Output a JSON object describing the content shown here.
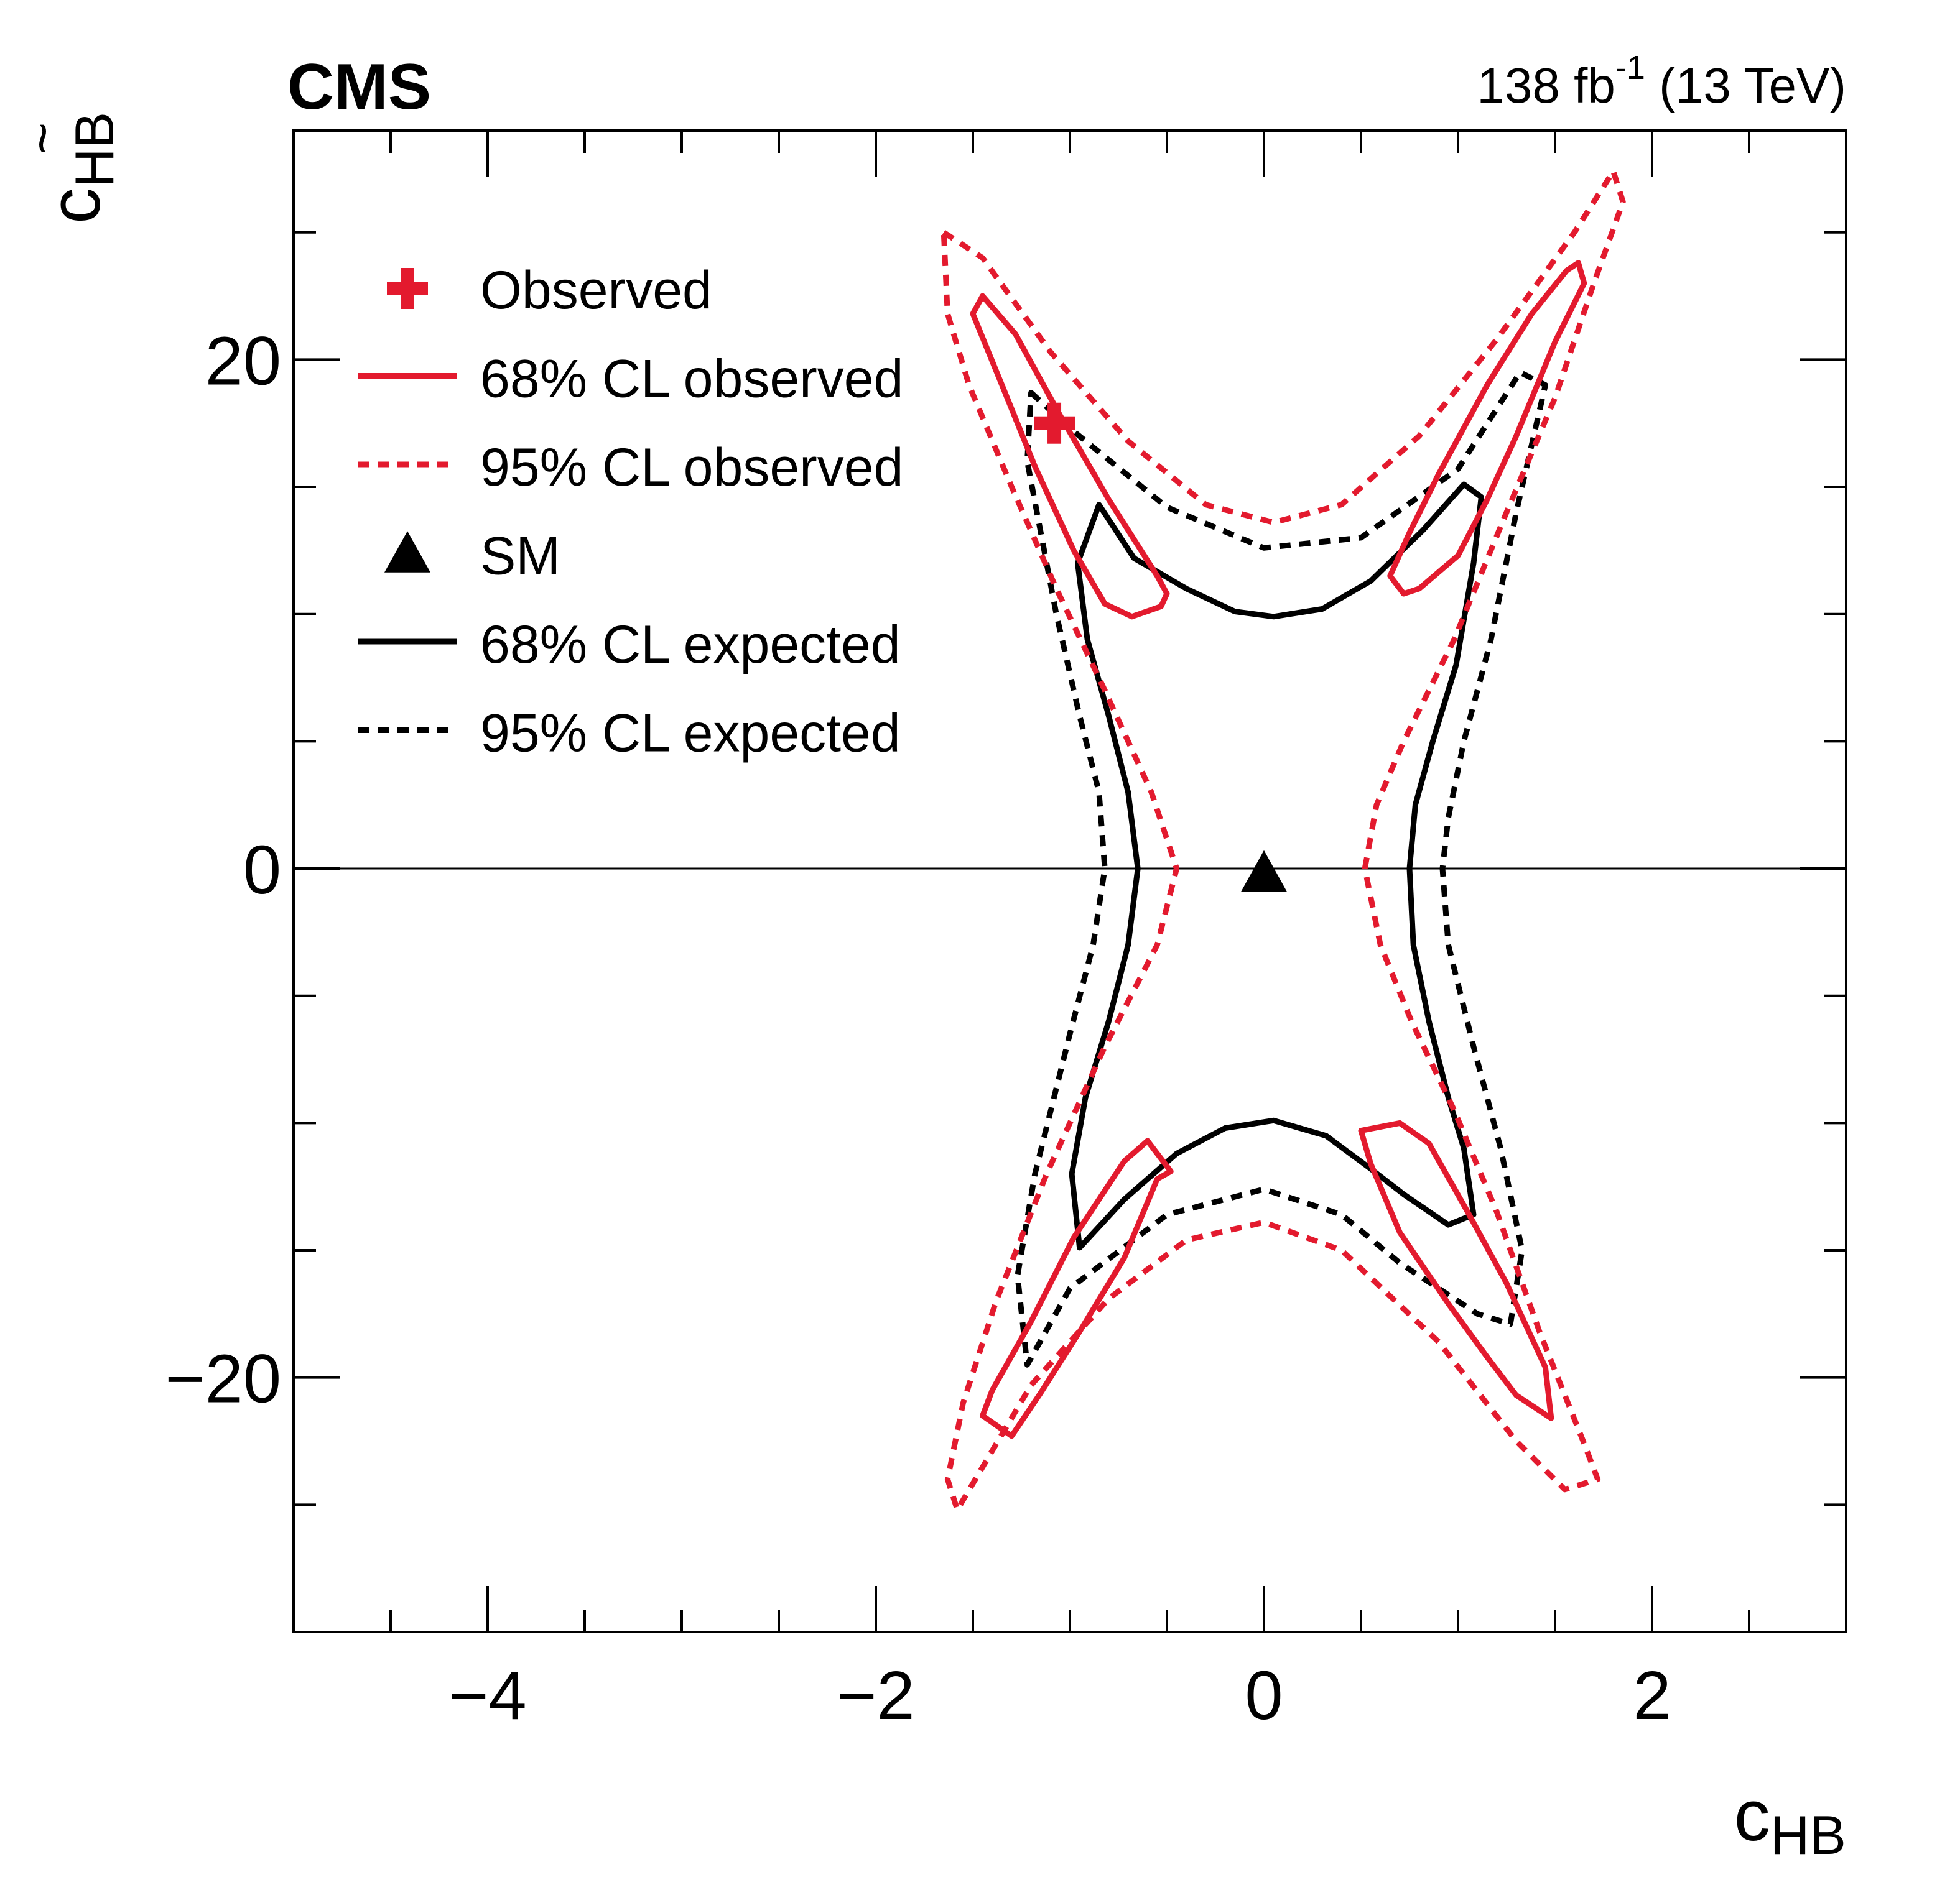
{
  "header": {
    "experiment": "CMS",
    "lumi_value": "138 fb",
    "lumi_exponent": "-1",
    "energy": "(13 TeV)"
  },
  "colors": {
    "observed": "#e31a2e",
    "expected": "#000000"
  },
  "chart_data": {
    "type": "line",
    "title": "",
    "xlabel": {
      "main": "c",
      "sub": "HB"
    },
    "ylabel": {
      "main": "c",
      "sub": "HB",
      "accent": "~"
    },
    "xlim": [
      -5,
      3
    ],
    "ylim": [
      -30,
      29
    ],
    "xticks": [
      -4,
      -2,
      0,
      2
    ],
    "xtick_labels": [
      "−4",
      "−2",
      "0",
      "2"
    ],
    "yticks": [
      -20,
      0,
      20
    ],
    "ytick_labels": [
      "−20",
      "0",
      "20"
    ],
    "reference_line": {
      "y": 0
    },
    "legend_position": "top-left",
    "legend": [
      {
        "key": "observed",
        "label": "Observed",
        "symbol": "cross",
        "color": "#e31a2e"
      },
      {
        "key": "obs68",
        "label": "68% CL observed",
        "symbol": "solid",
        "color": "#e31a2e"
      },
      {
        "key": "obs95",
        "label": "95% CL observed",
        "symbol": "dashed",
        "color": "#e31a2e"
      },
      {
        "key": "sm",
        "label": "SM",
        "symbol": "triangle",
        "color": "#000000"
      },
      {
        "key": "exp68",
        "label": "68% CL expected",
        "symbol": "solid",
        "color": "#000000"
      },
      {
        "key": "exp95",
        "label": "95% CL expected",
        "symbol": "dashed",
        "color": "#000000"
      }
    ],
    "points": {
      "observed_best_fit": {
        "x": -1.08,
        "y": 17.5
      },
      "sm": {
        "x": 0.0,
        "y": 0.0
      }
    },
    "series": [
      {
        "name": "68% CL expected",
        "color": "#000000",
        "style": "solid",
        "closed": true,
        "points": [
          [
            -0.85,
            14.3
          ],
          [
            -0.67,
            12.2
          ],
          [
            -0.4,
            11.0
          ],
          [
            -0.15,
            10.1
          ],
          [
            0.05,
            9.9
          ],
          [
            0.3,
            10.2
          ],
          [
            0.55,
            11.3
          ],
          [
            0.82,
            13.3
          ],
          [
            1.03,
            15.1
          ],
          [
            1.12,
            14.6
          ],
          [
            1.08,
            12.0
          ],
          [
            0.99,
            8.0
          ],
          [
            0.87,
            5.0
          ],
          [
            0.78,
            2.5
          ],
          [
            0.75,
            0.0
          ],
          [
            0.77,
            -3.0
          ],
          [
            0.85,
            -6.0
          ],
          [
            0.95,
            -9.0
          ],
          [
            1.03,
            -11.0
          ],
          [
            1.08,
            -13.6
          ],
          [
            0.95,
            -14.0
          ],
          [
            0.72,
            -12.8
          ],
          [
            0.55,
            -11.8
          ],
          [
            0.32,
            -10.5
          ],
          [
            0.05,
            -9.9
          ],
          [
            -0.2,
            -10.2
          ],
          [
            -0.45,
            -11.2
          ],
          [
            -0.72,
            -13.0
          ],
          [
            -0.95,
            -14.9
          ],
          [
            -0.99,
            -12.0
          ],
          [
            -0.92,
            -9.0
          ],
          [
            -0.8,
            -6.0
          ],
          [
            -0.7,
            -3.0
          ],
          [
            -0.65,
            0.0
          ],
          [
            -0.7,
            3.0
          ],
          [
            -0.8,
            6.0
          ],
          [
            -0.91,
            9.0
          ],
          [
            -0.96,
            12.0
          ]
        ]
      },
      {
        "name": "95% CL expected",
        "color": "#000000",
        "style": "dashed",
        "closed": true,
        "points": [
          [
            -1.2,
            18.7
          ],
          [
            -1.0,
            17.3
          ],
          [
            -0.5,
            14.2
          ],
          [
            0.0,
            12.6
          ],
          [
            0.5,
            13.0
          ],
          [
            1.0,
            15.7
          ],
          [
            1.32,
            19.5
          ],
          [
            1.45,
            19.0
          ],
          [
            1.3,
            14.0
          ],
          [
            1.17,
            9.0
          ],
          [
            1.03,
            5.0
          ],
          [
            0.95,
            2.0
          ],
          [
            0.92,
            0.0
          ],
          [
            0.95,
            -3.0
          ],
          [
            1.08,
            -7.0
          ],
          [
            1.22,
            -11.0
          ],
          [
            1.33,
            -15.0
          ],
          [
            1.27,
            -17.9
          ],
          [
            1.1,
            -17.5
          ],
          [
            0.7,
            -15.5
          ],
          [
            0.4,
            -13.6
          ],
          [
            0.0,
            -12.6
          ],
          [
            -0.5,
            -13.6
          ],
          [
            -1.0,
            -16.5
          ],
          [
            -1.22,
            -19.5
          ],
          [
            -1.27,
            -16.0
          ],
          [
            -1.18,
            -12.0
          ],
          [
            -1.0,
            -6.5
          ],
          [
            -0.88,
            -3.0
          ],
          [
            -0.82,
            0.0
          ],
          [
            -0.85,
            3.0
          ],
          [
            -0.95,
            6.0
          ],
          [
            -1.07,
            10.0
          ],
          [
            -1.22,
            16.0
          ]
        ]
      },
      {
        "name": "68% CL observed (upper left)",
        "color": "#e31a2e",
        "style": "solid",
        "closed": true,
        "points": [
          [
            -1.45,
            22.5
          ],
          [
            -1.28,
            21.0
          ],
          [
            -1.05,
            17.8
          ],
          [
            -0.8,
            14.5
          ],
          [
            -0.55,
            11.5
          ],
          [
            -0.5,
            10.8
          ],
          [
            -0.53,
            10.3
          ],
          [
            -0.68,
            9.9
          ],
          [
            -0.82,
            10.4
          ],
          [
            -0.98,
            12.5
          ],
          [
            -1.18,
            15.8
          ],
          [
            -1.35,
            19.0
          ],
          [
            -1.5,
            21.8
          ]
        ]
      },
      {
        "name": "68% CL observed (upper right)",
        "color": "#e31a2e",
        "style": "solid",
        "closed": true,
        "points": [
          [
            0.72,
            10.8
          ],
          [
            0.8,
            11.0
          ],
          [
            1.0,
            12.3
          ],
          [
            1.15,
            14.5
          ],
          [
            1.3,
            17.0
          ],
          [
            1.5,
            20.7
          ],
          [
            1.65,
            23.0
          ],
          [
            1.62,
            23.8
          ],
          [
            1.56,
            23.5
          ],
          [
            1.38,
            21.8
          ],
          [
            1.15,
            19.0
          ],
          [
            0.9,
            15.5
          ],
          [
            0.75,
            13.2
          ],
          [
            0.65,
            11.5
          ]
        ]
      },
      {
        "name": "68% CL observed (lower left)",
        "color": "#e31a2e",
        "style": "solid",
        "closed": true,
        "points": [
          [
            -1.45,
            -21.5
          ],
          [
            -1.3,
            -22.3
          ],
          [
            -1.15,
            -20.6
          ],
          [
            -0.95,
            -18.2
          ],
          [
            -0.72,
            -15.3
          ],
          [
            -0.55,
            -12.2
          ],
          [
            -0.48,
            -11.9
          ],
          [
            -0.6,
            -10.7
          ],
          [
            -0.72,
            -11.5
          ],
          [
            -0.98,
            -14.5
          ],
          [
            -1.2,
            -17.8
          ],
          [
            -1.4,
            -20.5
          ]
        ]
      },
      {
        "name": "68% CL observed (lower right)",
        "color": "#e31a2e",
        "style": "solid",
        "closed": true,
        "points": [
          [
            0.5,
            -10.3
          ],
          [
            0.7,
            -10.0
          ],
          [
            0.85,
            -10.8
          ],
          [
            1.05,
            -13.5
          ],
          [
            1.25,
            -16.3
          ],
          [
            1.45,
            -19.6
          ],
          [
            1.48,
            -21.6
          ],
          [
            1.3,
            -20.7
          ],
          [
            1.15,
            -19.2
          ],
          [
            0.95,
            -17.1
          ],
          [
            0.7,
            -14.3
          ],
          [
            0.55,
            -11.6
          ]
        ]
      },
      {
        "name": "95% CL observed",
        "color": "#e31a2e",
        "style": "dashed",
        "closed": true,
        "points": [
          [
            -1.65,
            25.0
          ],
          [
            -1.45,
            24.0
          ],
          [
            -1.1,
            20.3
          ],
          [
            -0.7,
            16.8
          ],
          [
            -0.3,
            14.3
          ],
          [
            0.05,
            13.6
          ],
          [
            0.4,
            14.3
          ],
          [
            0.8,
            17.0
          ],
          [
            1.2,
            20.8
          ],
          [
            1.6,
            25.0
          ],
          [
            1.8,
            27.4
          ],
          [
            1.85,
            26.2
          ],
          [
            1.7,
            23.0
          ],
          [
            1.5,
            18.5
          ],
          [
            1.25,
            14.0
          ],
          [
            0.98,
            9.0
          ],
          [
            0.72,
            5.0
          ],
          [
            0.58,
            2.5
          ],
          [
            0.52,
            0.0
          ],
          [
            0.6,
            -3.0
          ],
          [
            0.76,
            -6.0
          ],
          [
            0.98,
            -9.5
          ],
          [
            1.2,
            -13.5
          ],
          [
            1.42,
            -18.2
          ],
          [
            1.65,
            -22.6
          ],
          [
            1.72,
            -24.0
          ],
          [
            1.55,
            -24.4
          ],
          [
            1.3,
            -22.5
          ],
          [
            0.9,
            -18.6
          ],
          [
            0.4,
            -15.0
          ],
          [
            0.0,
            -13.9
          ],
          [
            -0.4,
            -14.6
          ],
          [
            -0.8,
            -16.9
          ],
          [
            -1.2,
            -20.3
          ],
          [
            -1.58,
            -25.2
          ],
          [
            -1.63,
            -24.0
          ],
          [
            -1.55,
            -21.0
          ],
          [
            -1.38,
            -17.0
          ],
          [
            -1.12,
            -12.0
          ],
          [
            -0.82,
            -7.0
          ],
          [
            -0.55,
            -3.0
          ],
          [
            -0.45,
            0.0
          ],
          [
            -0.58,
            3.0
          ],
          [
            -0.82,
            7.0
          ],
          [
            -1.07,
            11.0
          ],
          [
            -1.3,
            15.0
          ],
          [
            -1.52,
            19.0
          ],
          [
            -1.63,
            21.8
          ]
        ]
      }
    ]
  }
}
